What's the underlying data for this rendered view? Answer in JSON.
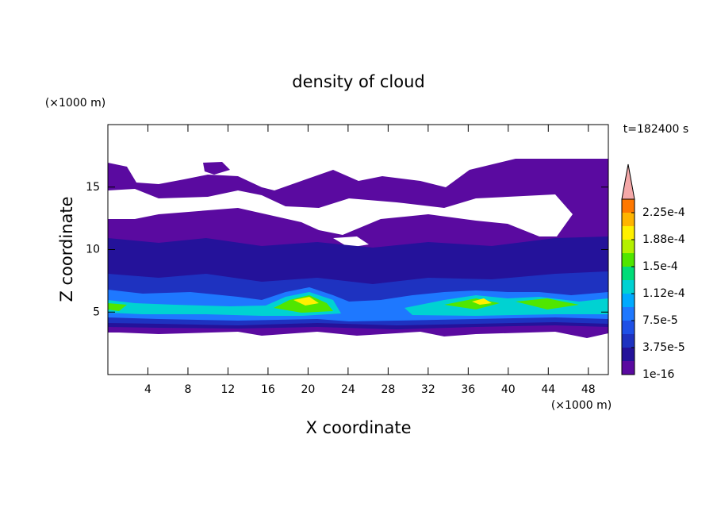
{
  "chart_data": {
    "type": "contour",
    "title": "density of cloud",
    "x_label": "X coordinate",
    "y_label": "Z coordinate",
    "x_unit": "(×1000 m)",
    "y_unit": "(×1000 m)",
    "annotation": "t=182400 s",
    "xlim": [
      0,
      50
    ],
    "ylim": [
      0,
      20
    ],
    "xticks": [
      4,
      8,
      12,
      16,
      20,
      24,
      28,
      32,
      36,
      40,
      44,
      48
    ],
    "yticks": [
      5,
      10,
      15
    ],
    "colorbar": {
      "levels": [
        1e-16,
        1.875e-05,
        3.75e-05,
        5.625e-05,
        7.5e-05,
        9.375e-05,
        0.0001125,
        0.00013125,
        0.00015,
        0.00016875,
        0.0001875,
        0.00020625,
        0.000225,
        0.00024375
      ],
      "colors": [
        "#5a0aa0",
        "#24129a",
        "#1e32c0",
        "#1e50e6",
        "#1e78ff",
        "#00aaff",
        "#00d2d2",
        "#00dc78",
        "#50e600",
        "#b4f000",
        "#fff000",
        "#ffb400",
        "#ff7800"
      ],
      "extend_color": "#f4a8a8",
      "ticks": [
        1e-16,
        {
          "value": 3.75e-05,
          "label": "3.75e-5"
        },
        {
          "value": 7.5e-05,
          "label": "7.5e-5"
        },
        {
          "value": 0.0001125,
          "label": "1.12e-4"
        },
        {
          "value": 0.00015,
          "label": "1.5e-4"
        },
        {
          "value": 0.0001875,
          "label": "1.88e-4"
        },
        {
          "value": 0.000225,
          "label": "2.25e-4"
        }
      ]
    }
  }
}
